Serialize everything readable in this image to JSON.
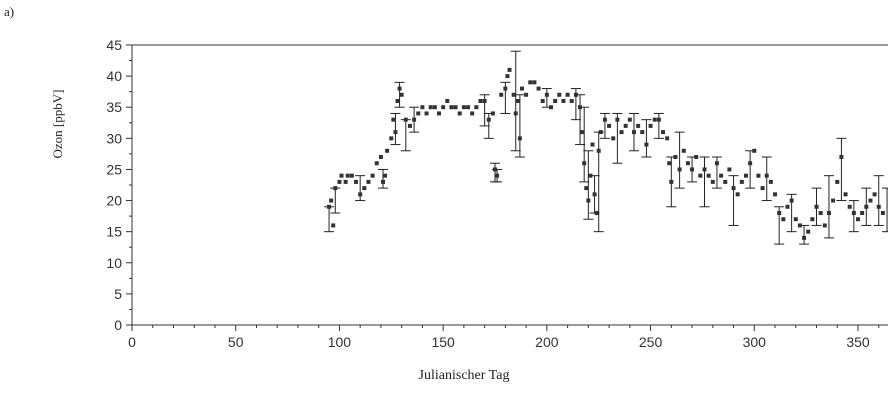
{
  "panel_label": "a)",
  "chart_data": {
    "type": "scatter",
    "title": "",
    "xlabel": "Julianischer Tag",
    "ylabel": "Ozon [ppbV]",
    "xlim": [
      0,
      365
    ],
    "ylim": [
      0,
      45
    ],
    "x_ticks": [
      0,
      50,
      100,
      150,
      200,
      250,
      300,
      350
    ],
    "y_ticks": [
      0,
      5,
      10,
      15,
      20,
      25,
      30,
      35,
      40,
      45
    ],
    "x_tick_labels": [
      "0",
      "50",
      "100",
      "150",
      "200",
      "250",
      "300",
      "350"
    ],
    "y_tick_labels": [
      "0",
      "5",
      "10",
      "15",
      "20",
      "25",
      "30",
      "35",
      "40",
      "45"
    ],
    "grid": false,
    "series": [
      {
        "marker": "square",
        "color": "#333333",
        "points": [
          {
            "x": 95,
            "y": 19
          },
          {
            "x": 96,
            "y": 20
          },
          {
            "x": 97,
            "y": 16
          },
          {
            "x": 98,
            "y": 22
          },
          {
            "x": 100,
            "y": 23
          },
          {
            "x": 101,
            "y": 24
          },
          {
            "x": 103,
            "y": 23
          },
          {
            "x": 104,
            "y": 24
          },
          {
            "x": 106,
            "y": 24
          },
          {
            "x": 108,
            "y": 23
          },
          {
            "x": 110,
            "y": 21
          },
          {
            "x": 112,
            "y": 22
          },
          {
            "x": 114,
            "y": 23
          },
          {
            "x": 116,
            "y": 24
          },
          {
            "x": 118,
            "y": 26
          },
          {
            "x": 120,
            "y": 27
          },
          {
            "x": 121,
            "y": 23
          },
          {
            "x": 122,
            "y": 24
          },
          {
            "x": 123,
            "y": 28
          },
          {
            "x": 125,
            "y": 30
          },
          {
            "x": 126,
            "y": 33
          },
          {
            "x": 127,
            "y": 31
          },
          {
            "x": 128,
            "y": 36
          },
          {
            "x": 129,
            "y": 38
          },
          {
            "x": 130,
            "y": 37
          },
          {
            "x": 132,
            "y": 33
          },
          {
            "x": 134,
            "y": 32
          },
          {
            "x": 136,
            "y": 33
          },
          {
            "x": 138,
            "y": 34
          },
          {
            "x": 140,
            "y": 35
          },
          {
            "x": 142,
            "y": 34
          },
          {
            "x": 144,
            "y": 35
          },
          {
            "x": 146,
            "y": 35
          },
          {
            "x": 148,
            "y": 34
          },
          {
            "x": 150,
            "y": 35
          },
          {
            "x": 152,
            "y": 36
          },
          {
            "x": 154,
            "y": 35
          },
          {
            "x": 156,
            "y": 35
          },
          {
            "x": 158,
            "y": 34
          },
          {
            "x": 160,
            "y": 35
          },
          {
            "x": 162,
            "y": 35
          },
          {
            "x": 164,
            "y": 34
          },
          {
            "x": 166,
            "y": 35
          },
          {
            "x": 168,
            "y": 36
          },
          {
            "x": 170,
            "y": 36
          },
          {
            "x": 172,
            "y": 33
          },
          {
            "x": 174,
            "y": 34
          },
          {
            "x": 175,
            "y": 25
          },
          {
            "x": 176,
            "y": 24
          },
          {
            "x": 178,
            "y": 37
          },
          {
            "x": 180,
            "y": 38
          },
          {
            "x": 181,
            "y": 40
          },
          {
            "x": 182,
            "y": 41
          },
          {
            "x": 184,
            "y": 37
          },
          {
            "x": 185,
            "y": 34
          },
          {
            "x": 186,
            "y": 36
          },
          {
            "x": 187,
            "y": 30
          },
          {
            "x": 188,
            "y": 38
          },
          {
            "x": 190,
            "y": 37
          },
          {
            "x": 192,
            "y": 39
          },
          {
            "x": 194,
            "y": 39
          },
          {
            "x": 196,
            "y": 38
          },
          {
            "x": 198,
            "y": 36
          },
          {
            "x": 200,
            "y": 37
          },
          {
            "x": 202,
            "y": 35
          },
          {
            "x": 204,
            "y": 36
          },
          {
            "x": 206,
            "y": 37
          },
          {
            "x": 208,
            "y": 36
          },
          {
            "x": 210,
            "y": 37
          },
          {
            "x": 212,
            "y": 36
          },
          {
            "x": 214,
            "y": 37
          },
          {
            "x": 216,
            "y": 35
          },
          {
            "x": 217,
            "y": 31
          },
          {
            "x": 218,
            "y": 26
          },
          {
            "x": 219,
            "y": 22
          },
          {
            "x": 220,
            "y": 20
          },
          {
            "x": 221,
            "y": 24
          },
          {
            "x": 222,
            "y": 29
          },
          {
            "x": 223,
            "y": 21
          },
          {
            "x": 224,
            "y": 18
          },
          {
            "x": 225,
            "y": 28
          },
          {
            "x": 226,
            "y": 31
          },
          {
            "x": 228,
            "y": 33
          },
          {
            "x": 230,
            "y": 32
          },
          {
            "x": 232,
            "y": 30
          },
          {
            "x": 234,
            "y": 33
          },
          {
            "x": 236,
            "y": 31
          },
          {
            "x": 238,
            "y": 32
          },
          {
            "x": 240,
            "y": 33
          },
          {
            "x": 242,
            "y": 31
          },
          {
            "x": 244,
            "y": 32
          },
          {
            "x": 246,
            "y": 31
          },
          {
            "x": 248,
            "y": 29
          },
          {
            "x": 250,
            "y": 32
          },
          {
            "x": 252,
            "y": 33
          },
          {
            "x": 254,
            "y": 33
          },
          {
            "x": 256,
            "y": 31
          },
          {
            "x": 258,
            "y": 30
          },
          {
            "x": 259,
            "y": 26
          },
          {
            "x": 260,
            "y": 23
          },
          {
            "x": 262,
            "y": 27
          },
          {
            "x": 264,
            "y": 25
          },
          {
            "x": 266,
            "y": 28
          },
          {
            "x": 268,
            "y": 26
          },
          {
            "x": 270,
            "y": 25
          },
          {
            "x": 272,
            "y": 27
          },
          {
            "x": 274,
            "y": 24
          },
          {
            "x": 276,
            "y": 25
          },
          {
            "x": 278,
            "y": 24
          },
          {
            "x": 280,
            "y": 23
          },
          {
            "x": 282,
            "y": 26
          },
          {
            "x": 284,
            "y": 24
          },
          {
            "x": 286,
            "y": 23
          },
          {
            "x": 288,
            "y": 25
          },
          {
            "x": 290,
            "y": 22
          },
          {
            "x": 292,
            "y": 21
          },
          {
            "x": 294,
            "y": 23
          },
          {
            "x": 296,
            "y": 24
          },
          {
            "x": 298,
            "y": 26
          },
          {
            "x": 300,
            "y": 28
          },
          {
            "x": 302,
            "y": 24
          },
          {
            "x": 304,
            "y": 22
          },
          {
            "x": 306,
            "y": 24
          },
          {
            "x": 308,
            "y": 23
          },
          {
            "x": 310,
            "y": 21
          },
          {
            "x": 312,
            "y": 18
          },
          {
            "x": 314,
            "y": 17
          },
          {
            "x": 316,
            "y": 19
          },
          {
            "x": 318,
            "y": 20
          },
          {
            "x": 320,
            "y": 17
          },
          {
            "x": 322,
            "y": 16
          },
          {
            "x": 324,
            "y": 14
          },
          {
            "x": 326,
            "y": 15
          },
          {
            "x": 328,
            "y": 17
          },
          {
            "x": 330,
            "y": 19
          },
          {
            "x": 332,
            "y": 18
          },
          {
            "x": 334,
            "y": 16
          },
          {
            "x": 336,
            "y": 18
          },
          {
            "x": 338,
            "y": 20
          },
          {
            "x": 340,
            "y": 23
          },
          {
            "x": 342,
            "y": 27
          },
          {
            "x": 344,
            "y": 21
          },
          {
            "x": 346,
            "y": 19
          },
          {
            "x": 348,
            "y": 18
          },
          {
            "x": 350,
            "y": 17
          },
          {
            "x": 352,
            "y": 18
          },
          {
            "x": 354,
            "y": 19
          },
          {
            "x": 356,
            "y": 20
          },
          {
            "x": 358,
            "y": 21
          },
          {
            "x": 360,
            "y": 19
          },
          {
            "x": 362,
            "y": 18
          },
          {
            "x": 364,
            "y": 17
          }
        ]
      }
    ],
    "error_bars": [
      {
        "x": 95,
        "low": 15,
        "high": 19
      },
      {
        "x": 98,
        "low": 18,
        "high": 22
      },
      {
        "x": 110,
        "low": 20,
        "high": 24
      },
      {
        "x": 121,
        "low": 22,
        "high": 25
      },
      {
        "x": 127,
        "low": 29,
        "high": 34
      },
      {
        "x": 129,
        "low": 35,
        "high": 39
      },
      {
        "x": 132,
        "low": 28,
        "high": 33
      },
      {
        "x": 136,
        "low": 31,
        "high": 35
      },
      {
        "x": 170,
        "low": 32,
        "high": 37
      },
      {
        "x": 172,
        "low": 30,
        "high": 34
      },
      {
        "x": 175,
        "low": 23,
        "high": 26
      },
      {
        "x": 176,
        "low": 23,
        "high": 25
      },
      {
        "x": 180,
        "low": 34,
        "high": 39
      },
      {
        "x": 185,
        "low": 28,
        "high": 44
      },
      {
        "x": 187,
        "low": 27,
        "high": 37
      },
      {
        "x": 200,
        "low": 35,
        "high": 38
      },
      {
        "x": 214,
        "low": 33,
        "high": 38
      },
      {
        "x": 216,
        "low": 29,
        "high": 37
      },
      {
        "x": 218,
        "low": 23,
        "high": 35
      },
      {
        "x": 220,
        "low": 17,
        "high": 28
      },
      {
        "x": 223,
        "low": 18,
        "high": 24
      },
      {
        "x": 225,
        "low": 15,
        "high": 31
      },
      {
        "x": 228,
        "low": 30,
        "high": 34
      },
      {
        "x": 234,
        "low": 26,
        "high": 34
      },
      {
        "x": 242,
        "low": 28,
        "high": 34
      },
      {
        "x": 248,
        "low": 27,
        "high": 33
      },
      {
        "x": 254,
        "low": 30,
        "high": 34
      },
      {
        "x": 260,
        "low": 19,
        "high": 27
      },
      {
        "x": 264,
        "low": 22,
        "high": 31
      },
      {
        "x": 270,
        "low": 23,
        "high": 27
      },
      {
        "x": 276,
        "low": 19,
        "high": 27
      },
      {
        "x": 282,
        "low": 22,
        "high": 27
      },
      {
        "x": 290,
        "low": 16,
        "high": 24
      },
      {
        "x": 298,
        "low": 22,
        "high": 28
      },
      {
        "x": 306,
        "low": 20,
        "high": 27
      },
      {
        "x": 312,
        "low": 13,
        "high": 19
      },
      {
        "x": 318,
        "low": 15,
        "high": 21
      },
      {
        "x": 324,
        "low": 13,
        "high": 16
      },
      {
        "x": 330,
        "low": 16,
        "high": 22
      },
      {
        "x": 336,
        "low": 14,
        "high": 24
      },
      {
        "x": 342,
        "low": 20,
        "high": 30
      },
      {
        "x": 348,
        "low": 15,
        "high": 20
      },
      {
        "x": 354,
        "low": 16,
        "high": 22
      },
      {
        "x": 360,
        "low": 16,
        "high": 24
      },
      {
        "x": 364,
        "low": 15,
        "high": 22
      }
    ]
  }
}
